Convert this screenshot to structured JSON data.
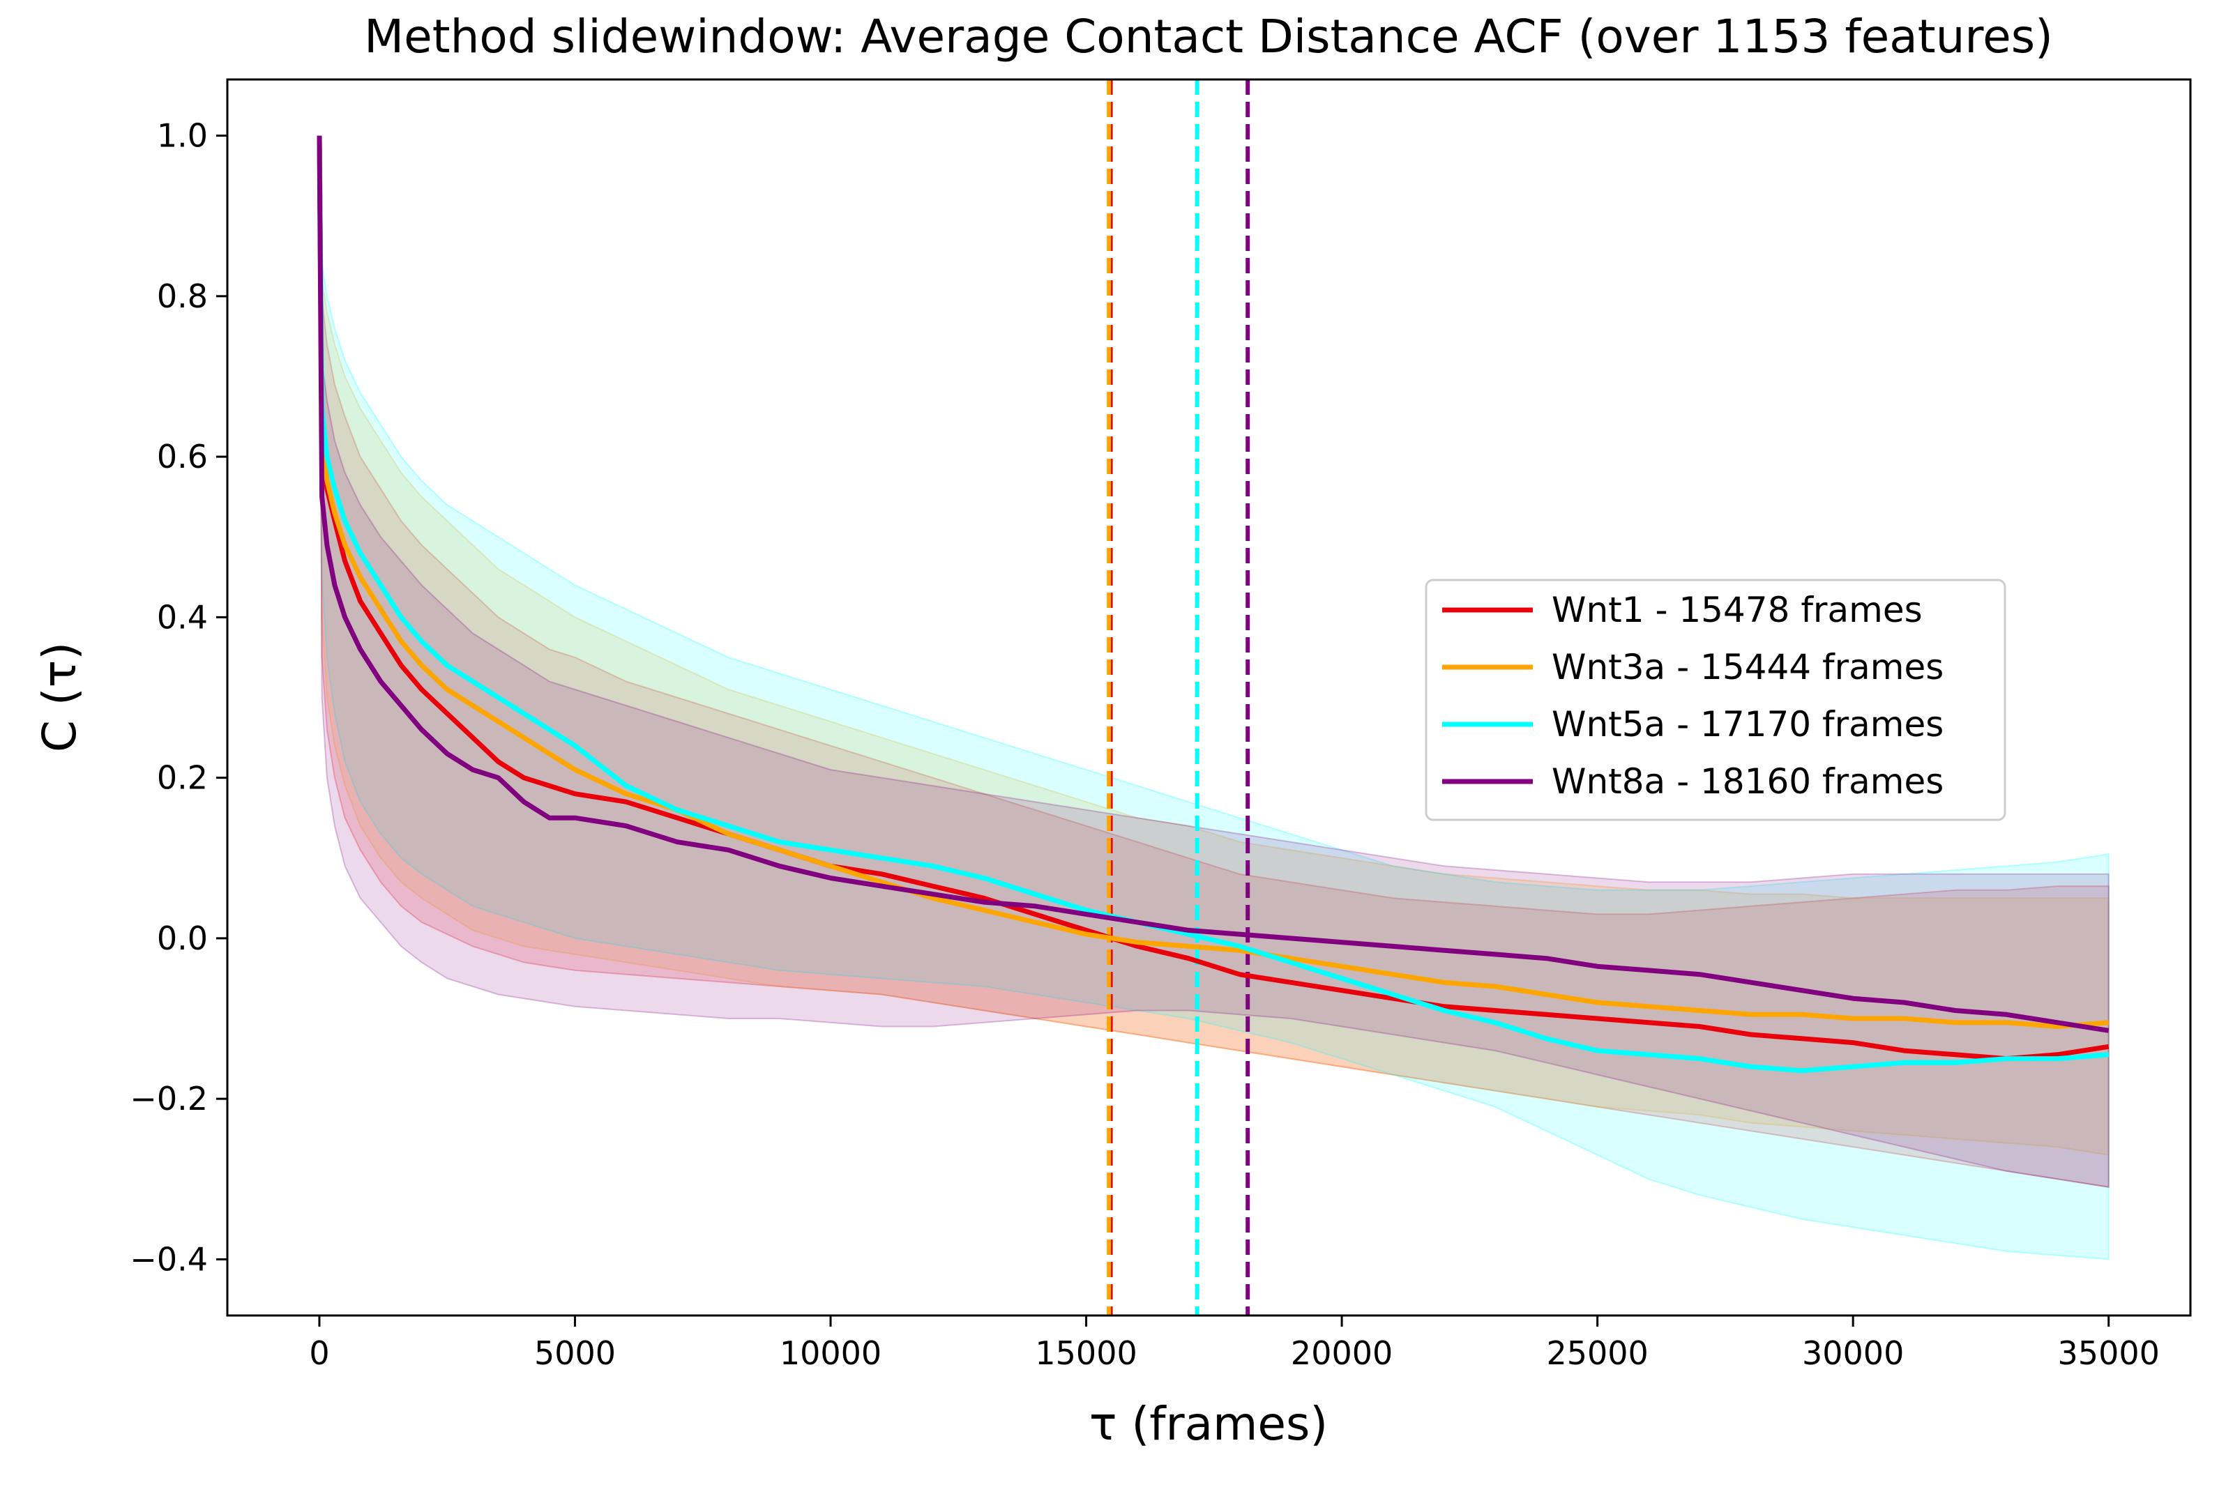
{
  "chart_data": {
    "type": "line",
    "title": "Method slidewindow: Average Contact Distance ACF (over 1153 features)",
    "xlabel": "τ (frames)",
    "ylabel": "C (τ)",
    "xlim": [
      -1800,
      36600
    ],
    "ylim": [
      -0.47,
      1.07
    ],
    "xticks": [
      0,
      5000,
      10000,
      15000,
      20000,
      25000,
      30000,
      35000
    ],
    "xtick_labels": [
      "0",
      "5000",
      "10000",
      "15000",
      "20000",
      "25000",
      "30000",
      "35000"
    ],
    "yticks": [
      -0.4,
      -0.2,
      0.0,
      0.2,
      0.4,
      0.6,
      0.8,
      1.0
    ],
    "ytick_labels": [
      "−0.4",
      "−0.2",
      "0.0",
      "0.2",
      "0.4",
      "0.6",
      "0.8",
      "1.0"
    ],
    "grid": false,
    "legend_position": "center-right",
    "x": [
      0,
      50,
      150,
      300,
      500,
      800,
      1200,
      1600,
      2000,
      2500,
      3000,
      3500,
      4000,
      4500,
      5000,
      6000,
      7000,
      8000,
      9000,
      10000,
      11000,
      12000,
      13000,
      14000,
      15000,
      16000,
      17000,
      18000,
      19000,
      20000,
      21000,
      22000,
      23000,
      24000,
      25000,
      26000,
      27000,
      28000,
      29000,
      30000,
      31000,
      32000,
      33000,
      34000,
      35000
    ],
    "series": [
      {
        "name": "Wnt1 - 15478 frames",
        "color": "#e8000b",
        "decorrelation_frame": 15478,
        "mean": [
          1.0,
          0.62,
          0.56,
          0.52,
          0.47,
          0.42,
          0.38,
          0.34,
          0.31,
          0.28,
          0.25,
          0.22,
          0.2,
          0.19,
          0.18,
          0.17,
          0.15,
          0.13,
          0.11,
          0.09,
          0.08,
          0.065,
          0.05,
          0.03,
          0.01,
          -0.01,
          -0.025,
          -0.045,
          -0.055,
          -0.065,
          -0.075,
          -0.085,
          -0.09,
          -0.095,
          -0.1,
          -0.105,
          -0.11,
          -0.12,
          -0.125,
          -0.13,
          -0.14,
          -0.145,
          -0.15,
          -0.145,
          -0.135
        ],
        "upper": [
          1.0,
          0.8,
          0.74,
          0.69,
          0.65,
          0.6,
          0.56,
          0.52,
          0.49,
          0.46,
          0.43,
          0.4,
          0.38,
          0.36,
          0.35,
          0.32,
          0.3,
          0.28,
          0.26,
          0.24,
          0.22,
          0.2,
          0.18,
          0.16,
          0.14,
          0.12,
          0.1,
          0.08,
          0.07,
          0.06,
          0.05,
          0.045,
          0.04,
          0.035,
          0.03,
          0.03,
          0.035,
          0.04,
          0.045,
          0.05,
          0.055,
          0.06,
          0.06,
          0.065,
          0.065
        ],
        "lower": [
          1.0,
          0.35,
          0.26,
          0.2,
          0.15,
          0.11,
          0.07,
          0.04,
          0.02,
          0.005,
          -0.01,
          -0.02,
          -0.03,
          -0.035,
          -0.04,
          -0.045,
          -0.05,
          -0.055,
          -0.06,
          -0.065,
          -0.07,
          -0.08,
          -0.09,
          -0.1,
          -0.11,
          -0.12,
          -0.13,
          -0.14,
          -0.15,
          -0.16,
          -0.17,
          -0.18,
          -0.19,
          -0.2,
          -0.21,
          -0.22,
          -0.23,
          -0.24,
          -0.25,
          -0.26,
          -0.27,
          -0.28,
          -0.29,
          -0.3,
          -0.31
        ]
      },
      {
        "name": "Wnt3a - 15444 frames",
        "color": "#ffa500",
        "decorrelation_frame": 15444,
        "mean": [
          1.0,
          0.63,
          0.57,
          0.53,
          0.49,
          0.45,
          0.41,
          0.37,
          0.34,
          0.31,
          0.29,
          0.27,
          0.25,
          0.23,
          0.21,
          0.18,
          0.16,
          0.13,
          0.11,
          0.09,
          0.07,
          0.05,
          0.035,
          0.02,
          0.005,
          -0.005,
          -0.01,
          -0.015,
          -0.025,
          -0.035,
          -0.045,
          -0.055,
          -0.06,
          -0.07,
          -0.08,
          -0.085,
          -0.09,
          -0.095,
          -0.095,
          -0.1,
          -0.1,
          -0.105,
          -0.105,
          -0.11,
          -0.105
        ],
        "upper": [
          1.0,
          0.82,
          0.78,
          0.74,
          0.7,
          0.66,
          0.62,
          0.58,
          0.55,
          0.52,
          0.49,
          0.46,
          0.44,
          0.42,
          0.4,
          0.37,
          0.34,
          0.31,
          0.29,
          0.27,
          0.25,
          0.23,
          0.21,
          0.19,
          0.17,
          0.15,
          0.14,
          0.12,
          0.11,
          0.1,
          0.09,
          0.08,
          0.075,
          0.07,
          0.065,
          0.06,
          0.06,
          0.055,
          0.055,
          0.05,
          0.05,
          0.05,
          0.05,
          0.05,
          0.05
        ],
        "lower": [
          1.0,
          0.4,
          0.3,
          0.24,
          0.19,
          0.14,
          0.1,
          0.07,
          0.05,
          0.03,
          0.01,
          0.0,
          -0.01,
          -0.015,
          -0.02,
          -0.03,
          -0.04,
          -0.05,
          -0.06,
          -0.065,
          -0.07,
          -0.08,
          -0.09,
          -0.1,
          -0.11,
          -0.12,
          -0.13,
          -0.14,
          -0.15,
          -0.16,
          -0.17,
          -0.18,
          -0.19,
          -0.2,
          -0.21,
          -0.215,
          -0.22,
          -0.23,
          -0.235,
          -0.24,
          -0.245,
          -0.25,
          -0.255,
          -0.26,
          -0.27
        ]
      },
      {
        "name": "Wnt5a - 17170 frames",
        "color": "#00ffff",
        "decorrelation_frame": 17170,
        "mean": [
          1.0,
          0.66,
          0.6,
          0.56,
          0.52,
          0.48,
          0.44,
          0.4,
          0.37,
          0.34,
          0.32,
          0.3,
          0.28,
          0.26,
          0.24,
          0.19,
          0.16,
          0.14,
          0.12,
          0.11,
          0.1,
          0.09,
          0.075,
          0.055,
          0.035,
          0.02,
          0.005,
          -0.01,
          -0.03,
          -0.05,
          -0.07,
          -0.09,
          -0.105,
          -0.125,
          -0.14,
          -0.145,
          -0.15,
          -0.16,
          -0.165,
          -0.16,
          -0.155,
          -0.155,
          -0.15,
          -0.15,
          -0.145
        ],
        "upper": [
          1.0,
          0.84,
          0.8,
          0.76,
          0.72,
          0.68,
          0.64,
          0.6,
          0.57,
          0.54,
          0.52,
          0.5,
          0.48,
          0.46,
          0.44,
          0.41,
          0.38,
          0.35,
          0.33,
          0.31,
          0.29,
          0.27,
          0.25,
          0.23,
          0.21,
          0.19,
          0.17,
          0.15,
          0.13,
          0.11,
          0.09,
          0.08,
          0.07,
          0.065,
          0.06,
          0.06,
          0.06,
          0.065,
          0.07,
          0.075,
          0.08,
          0.085,
          0.09,
          0.095,
          0.105
        ],
        "lower": [
          1.0,
          0.45,
          0.35,
          0.28,
          0.22,
          0.17,
          0.13,
          0.1,
          0.08,
          0.06,
          0.04,
          0.03,
          0.02,
          0.01,
          0.0,
          -0.01,
          -0.02,
          -0.03,
          -0.04,
          -0.045,
          -0.05,
          -0.055,
          -0.06,
          -0.07,
          -0.08,
          -0.09,
          -0.1,
          -0.115,
          -0.13,
          -0.15,
          -0.17,
          -0.19,
          -0.21,
          -0.24,
          -0.27,
          -0.3,
          -0.32,
          -0.335,
          -0.35,
          -0.36,
          -0.37,
          -0.38,
          -0.39,
          -0.395,
          -0.4
        ]
      },
      {
        "name": "Wnt8a - 18160 frames",
        "color": "#800080",
        "decorrelation_frame": 18160,
        "mean": [
          1.0,
          0.55,
          0.49,
          0.44,
          0.4,
          0.36,
          0.32,
          0.29,
          0.26,
          0.23,
          0.21,
          0.2,
          0.17,
          0.15,
          0.15,
          0.14,
          0.12,
          0.11,
          0.09,
          0.075,
          0.065,
          0.055,
          0.045,
          0.04,
          0.03,
          0.02,
          0.01,
          0.005,
          0.0,
          -0.005,
          -0.01,
          -0.015,
          -0.02,
          -0.025,
          -0.035,
          -0.04,
          -0.045,
          -0.055,
          -0.065,
          -0.075,
          -0.08,
          -0.09,
          -0.095,
          -0.105,
          -0.115
        ],
        "upper": [
          1.0,
          0.72,
          0.67,
          0.62,
          0.58,
          0.54,
          0.5,
          0.47,
          0.44,
          0.41,
          0.38,
          0.36,
          0.34,
          0.32,
          0.31,
          0.29,
          0.27,
          0.25,
          0.23,
          0.21,
          0.2,
          0.19,
          0.18,
          0.17,
          0.16,
          0.15,
          0.14,
          0.13,
          0.12,
          0.11,
          0.1,
          0.09,
          0.085,
          0.08,
          0.075,
          0.07,
          0.07,
          0.07,
          0.075,
          0.08,
          0.08,
          0.08,
          0.08,
          0.08,
          0.08
        ],
        "lower": [
          1.0,
          0.3,
          0.2,
          0.14,
          0.09,
          0.05,
          0.02,
          -0.01,
          -0.03,
          -0.05,
          -0.06,
          -0.07,
          -0.075,
          -0.08,
          -0.085,
          -0.09,
          -0.095,
          -0.1,
          -0.1,
          -0.105,
          -0.11,
          -0.11,
          -0.105,
          -0.1,
          -0.095,
          -0.09,
          -0.09,
          -0.095,
          -0.1,
          -0.11,
          -0.12,
          -0.13,
          -0.14,
          -0.155,
          -0.17,
          -0.185,
          -0.2,
          -0.215,
          -0.23,
          -0.245,
          -0.26,
          -0.275,
          -0.29,
          -0.3,
          -0.31
        ]
      }
    ]
  }
}
